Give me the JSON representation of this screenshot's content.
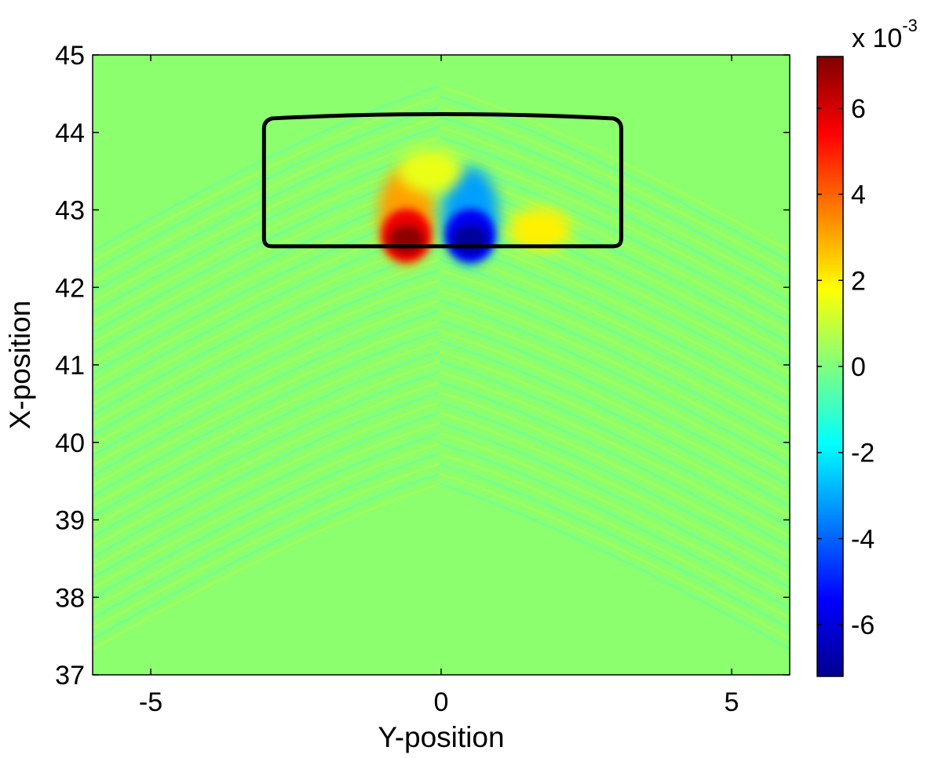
{
  "chart_data": {
    "type": "heatmap",
    "title": "",
    "xlabel": "Y-position",
    "ylabel": "X-position",
    "xlim": [
      -6,
      6
    ],
    "ylim": [
      37,
      45
    ],
    "xticks": [
      -5,
      0,
      5
    ],
    "xtick_labels": [
      "-5",
      "0",
      "5"
    ],
    "yticks": [
      37,
      38,
      39,
      40,
      41,
      42,
      43,
      44,
      45
    ],
    "ytick_labels": [
      "37",
      "38",
      "39",
      "40",
      "41",
      "42",
      "43",
      "44",
      "45"
    ],
    "grid": false,
    "colormap": "jet",
    "colorbar": {
      "range": [
        -7.2,
        7.2
      ],
      "ticks": [
        -6,
        -4,
        -2,
        0,
        2,
        4,
        6
      ],
      "tick_labels": [
        "-6",
        "-4",
        "-2",
        "0",
        "2",
        "4",
        "6"
      ],
      "multiplier_prefix": "x 10",
      "multiplier_exponent": "-3"
    },
    "background_value": 0,
    "outline": {
      "color": "#000000",
      "description_points": [
        [
          -3.05,
          42.53
        ],
        [
          3.1,
          42.53
        ],
        [
          3.1,
          44.15
        ],
        [
          -3.05,
          44.15
        ]
      ]
    },
    "features": [
      {
        "name": "positive lobe",
        "center": [
          -0.6,
          42.72
        ],
        "peak": 7.0
      },
      {
        "name": "negative lobe",
        "center": [
          0.5,
          42.72
        ],
        "peak": -7.0
      },
      {
        "name": "right positive lobe",
        "center": [
          1.7,
          42.75
        ],
        "peak": 2.0
      },
      {
        "name": "upper positive band",
        "center": [
          -0.2,
          43.5
        ],
        "peak": 1.5
      }
    ]
  }
}
